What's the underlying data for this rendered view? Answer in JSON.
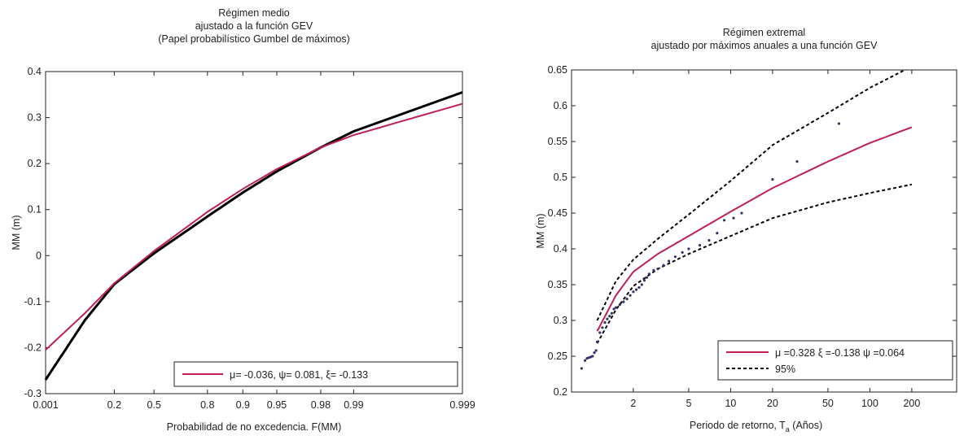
{
  "chart_data": [
    {
      "type": "line",
      "title": [
        "Régimen medio",
        "ajustado a la función GEV",
        "(Papel probabilístico Gumbel de máximos)"
      ],
      "xlabel": "Probabilidad de no excedencia. F(MM)",
      "ylabel": "MM (m)",
      "x_scale": "gumbel",
      "x_ticks": [
        0.001,
        0.2,
        0.5,
        0.8,
        0.9,
        0.95,
        0.98,
        0.99,
        0.999
      ],
      "x_tick_labels": [
        "0.001",
        "0.2",
        "0.5",
        "0.8",
        "0.9",
        "0.95",
        "0.98",
        "0.99",
        "0.999"
      ],
      "xlim": [
        0.001,
        0.999
      ],
      "ylim": [
        -0.3,
        0.4
      ],
      "y_ticks": [
        -0.3,
        -0.2,
        -0.1,
        0,
        0.1,
        0.2,
        0.3,
        0.4
      ],
      "y_tick_labels": [
        "-0.3",
        "-0.2",
        "-0.1",
        "0",
        "0.1",
        "0.2",
        "0.3",
        "0.4"
      ],
      "legend_location": "bottom-right",
      "series": [
        {
          "name": "μ= -0.036, ψ= 0.081, ξ= -0.133",
          "color": "#c0204f",
          "x": [
            0.001,
            0.05,
            0.2,
            0.5,
            0.8,
            0.9,
            0.95,
            0.98,
            0.99,
            0.999
          ],
          "y": [
            -0.205,
            -0.125,
            -0.06,
            0.01,
            0.095,
            0.145,
            0.188,
            0.235,
            0.262,
            0.33
          ]
        },
        {
          "color": "#000000",
          "x": [
            0.001,
            0.05,
            0.2,
            0.5,
            0.8,
            0.9,
            0.95,
            0.98,
            0.99,
            0.999
          ],
          "y": [
            -0.27,
            -0.14,
            -0.062,
            0.005,
            0.085,
            0.137,
            0.183,
            0.235,
            0.27,
            0.355
          ]
        }
      ]
    },
    {
      "type": "line",
      "title": [
        "Régimen extremal",
        "ajustado por máximos anuales a una función GEV"
      ],
      "xlabel": "Periodo de retorno, T",
      "xlabel_subscript": "a",
      "xlabel_suffix": " (Años)",
      "ylabel": "MM (m)",
      "x_scale": "log",
      "x_ticks": [
        2,
        5,
        10,
        20,
        50,
        100,
        200
      ],
      "x_tick_labels": [
        "2",
        "5",
        "10",
        "20",
        "50",
        "100",
        "200"
      ],
      "ylim": [
        0.2,
        0.65
      ],
      "y_ticks": [
        0.2,
        0.25,
        0.3,
        0.35,
        0.4,
        0.45,
        0.5,
        0.55,
        0.6,
        0.65
      ],
      "y_tick_labels": [
        "0.2",
        "0.25",
        "0.3",
        "0.35",
        "0.4",
        "0.45",
        "0.5",
        "0.55",
        "0.6",
        "0.65"
      ],
      "legend_location": "bottom-right",
      "series": [
        {
          "name": "μ =0.328 ξ =-0.138 ψ =0.064",
          "color": "#c0204f",
          "x": [
            1.1,
            1.5,
            2,
            3,
            5,
            10,
            20,
            50,
            100,
            200
          ],
          "y": [
            0.285,
            0.335,
            0.368,
            0.393,
            0.418,
            0.452,
            0.485,
            0.522,
            0.548,
            0.57
          ]
        },
        {
          "name": "95%",
          "color": "#000000",
          "x": [
            1.1,
            1.5,
            2,
            3,
            5,
            10,
            20,
            50,
            100,
            200
          ],
          "y": [
            0.3,
            0.355,
            0.385,
            0.414,
            0.448,
            0.495,
            0.545,
            0.59,
            0.625,
            0.655
          ]
        },
        {
          "color": "#000000",
          "x": [
            1.1,
            1.5,
            2,
            3,
            5,
            10,
            20,
            50,
            100,
            200
          ],
          "y": [
            0.268,
            0.315,
            0.348,
            0.372,
            0.393,
            0.418,
            0.443,
            0.465,
            0.478,
            0.49
          ]
        }
      ],
      "observations": {
        "color": "#333366",
        "x": [
          0.85,
          0.9,
          0.93,
          0.96,
          0.99,
          1.02,
          1.05,
          1.08,
          1.1,
          1.15,
          1.2,
          1.25,
          1.3,
          1.35,
          1.4,
          1.45,
          1.5,
          1.6,
          1.7,
          1.8,
          1.9,
          2.0,
          2.1,
          2.2,
          2.3,
          2.4,
          2.5,
          2.6,
          2.8,
          3.0,
          3.3,
          3.6,
          4.0,
          4.5,
          5.0,
          6.0,
          7.0,
          8.0,
          9.0,
          10.5,
          12,
          20,
          30,
          60
        ],
        "y": [
          0.233,
          0.244,
          0.247,
          0.248,
          0.249,
          0.25,
          0.255,
          0.258,
          0.27,
          0.283,
          0.29,
          0.297,
          0.302,
          0.306,
          0.31,
          0.316,
          0.318,
          0.322,
          0.326,
          0.33,
          0.335,
          0.34,
          0.343,
          0.346,
          0.35,
          0.356,
          0.36,
          0.365,
          0.37,
          0.372,
          0.377,
          0.383,
          0.389,
          0.395,
          0.4,
          0.405,
          0.412,
          0.422,
          0.44,
          0.443,
          0.45,
          0.497,
          0.522,
          0.575
        ]
      }
    }
  ]
}
